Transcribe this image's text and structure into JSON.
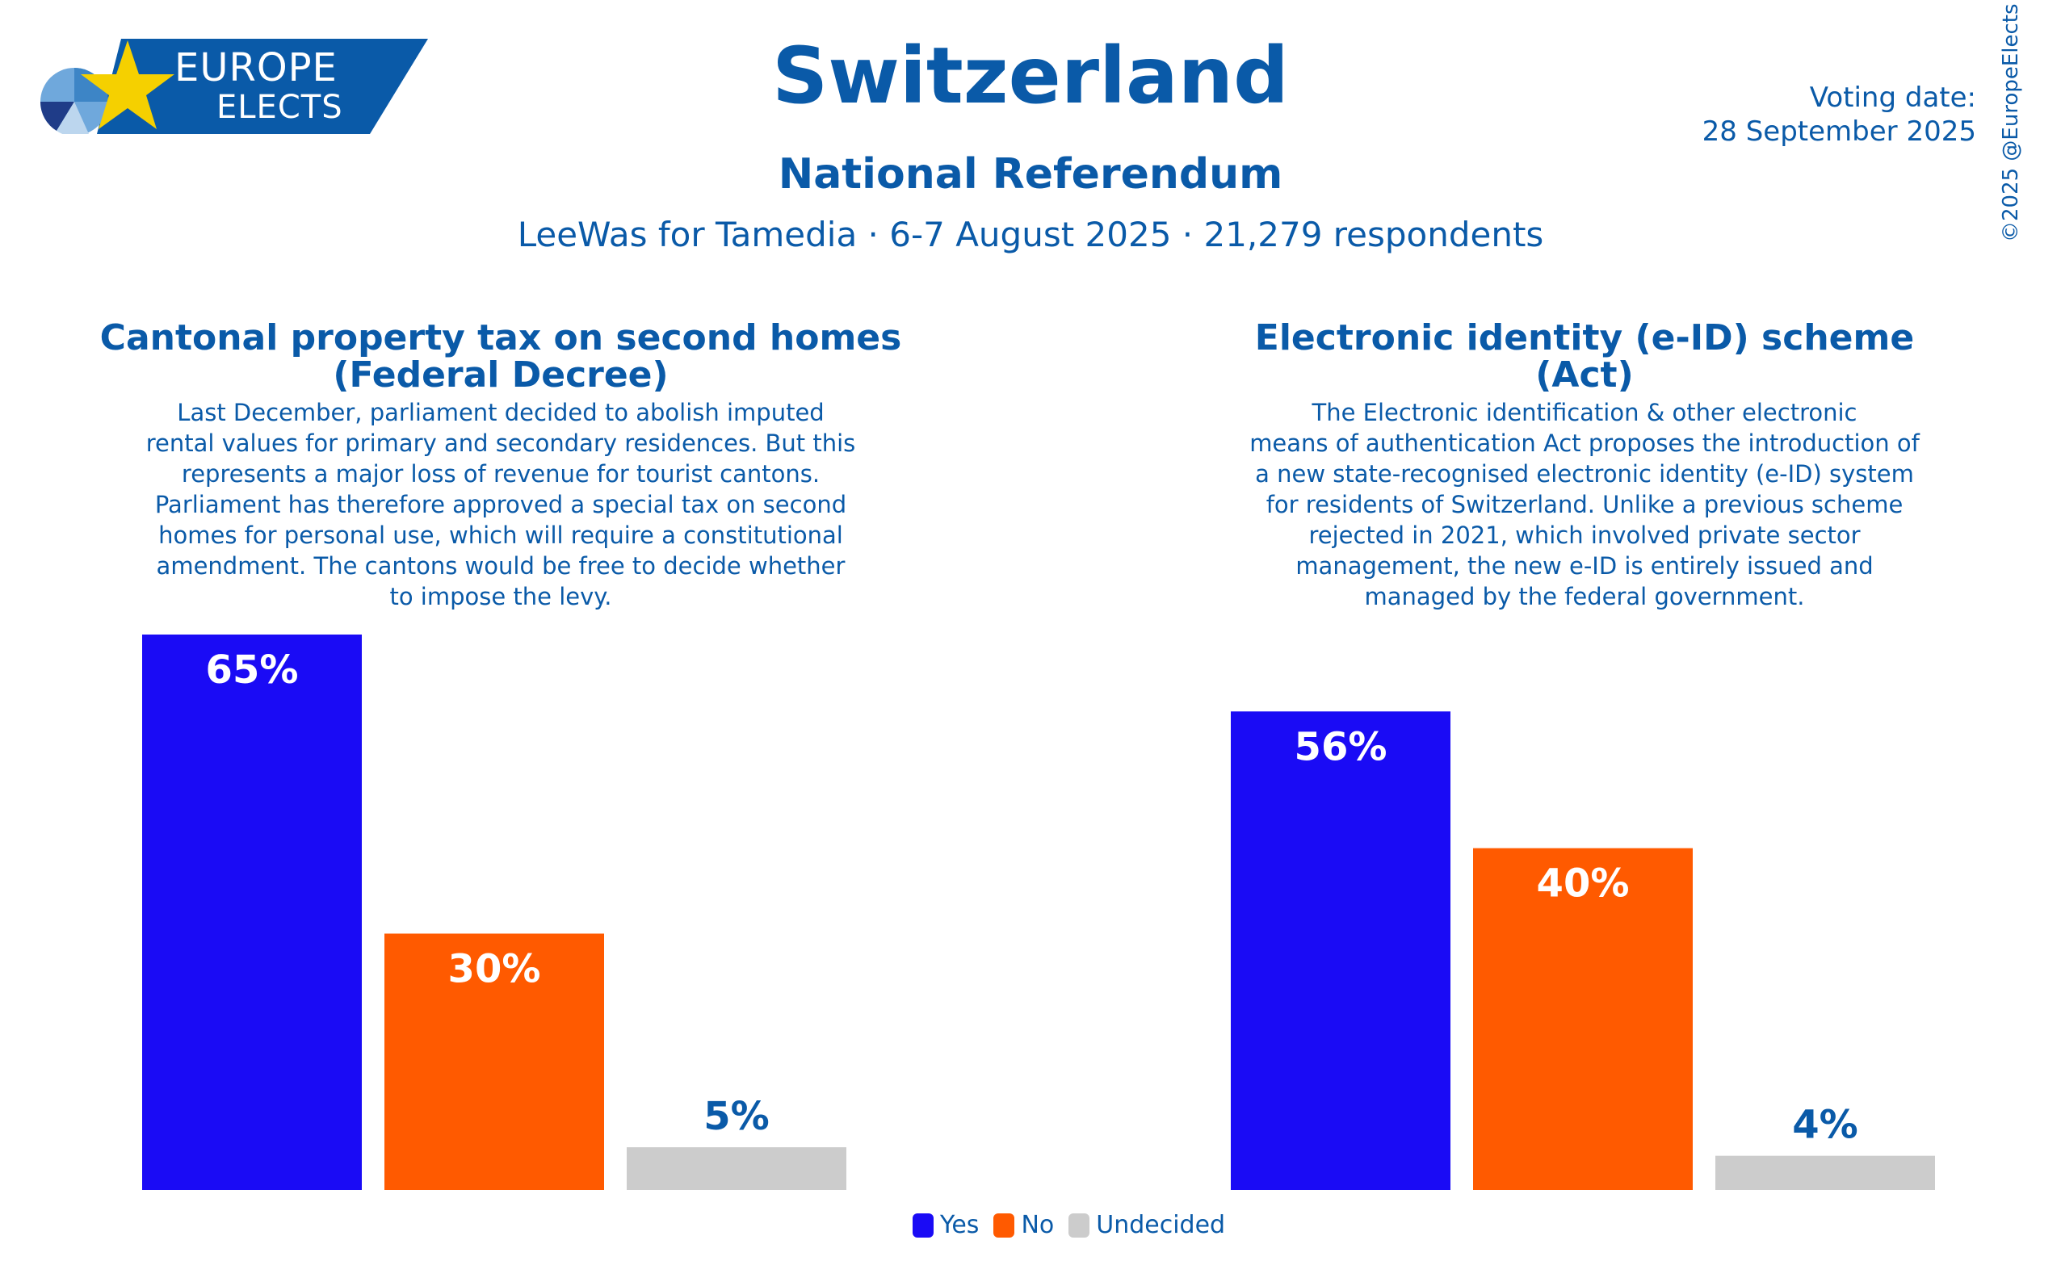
{
  "header": {
    "brand_line1": "EUROPE",
    "brand_line2": "ELECTS",
    "title": "Switzerland",
    "subtitle": "National Referendum",
    "source": "LeeWas for Tamedia · 6-7 August 2025 · 21,279 respondents",
    "voting_date_label": "Voting date:",
    "voting_date": "28 September 2025",
    "copyright": "©2025 @EuropeElects"
  },
  "questions": [
    {
      "title_line1": "Cantonal property tax on second homes",
      "title_line2": "(Federal Decree)",
      "description": [
        "Last December, parliament decided to abolish imputed",
        "rental values for primary and secondary residences. But this",
        "represents a major loss of revenue for tourist cantons.",
        "Parliament has therefore approved a special tax on second",
        "homes for personal use, which will require a constitutional",
        "amendment. The cantons would be free to decide whether",
        "to impose the levy."
      ]
    },
    {
      "title_line1": "Electronic identity (e-ID) scheme",
      "title_line2": "(Act)",
      "description": [
        "The Electronic identification & other electronic",
        "means of authentication Act proposes the introduction of",
        "a new state-recognised electronic identity (e-ID) system",
        "for residents of Switzerland. Unlike a previous scheme",
        "rejected in 2021, which involved private sector",
        "management, the new e-ID is entirely issued and",
        "managed by the federal government."
      ]
    }
  ],
  "chart_data": [
    {
      "type": "bar",
      "title": "Cantonal property tax on second homes (Federal Decree)",
      "categories": [
        "Yes",
        "No",
        "Undecided"
      ],
      "values": [
        65,
        30,
        5
      ],
      "labels": [
        "65%",
        "30%",
        "5%"
      ],
      "colors": [
        "#1a0bf5",
        "#ff5a00",
        "#cccccc"
      ],
      "ylim": [
        0,
        65
      ]
    },
    {
      "type": "bar",
      "title": "Electronic identity (e-ID) scheme (Act)",
      "categories": [
        "Yes",
        "No",
        "Undecided"
      ],
      "values": [
        56,
        40,
        4
      ],
      "labels": [
        "56%",
        "40%",
        "4%"
      ],
      "colors": [
        "#1a0bf5",
        "#ff5a00",
        "#cccccc"
      ],
      "ylim": [
        0,
        65
      ]
    }
  ],
  "legend": [
    {
      "label": "Yes",
      "color": "#1a0bf5"
    },
    {
      "label": "No",
      "color": "#ff5a00"
    },
    {
      "label": "Undecided",
      "color": "#cccccc"
    }
  ]
}
